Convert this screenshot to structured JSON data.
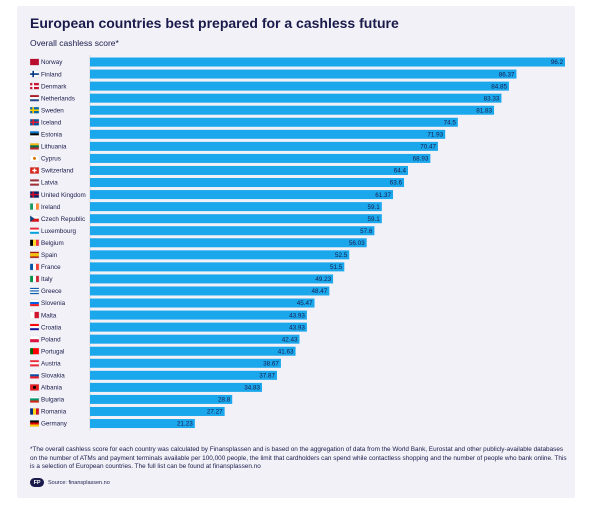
{
  "title": "European countries best prepared for a cashless future",
  "subtitle": "Overall cashless score*",
  "footnote": "*The overall cashless score for each country was calculated by Finansplassen and is based on the aggregation of data from the World Bank, Eurostat and other publicly-available databases on the number of ATMs and payment terminals available per 100,000 people, the limit that cardholders can spend while contactless shopping and the number of people who bank online. This is a selection of European countries. The full list can be found at finansplassen.no",
  "source": "Source: finansplassen.no",
  "logo_text": "FP",
  "colors": {
    "bar": "#1aa7ec",
    "text": "#1a1a4b",
    "card": "#f1f1f7",
    "grid": "#c9c9d6"
  },
  "chart_data": {
    "type": "bar",
    "orientation": "horizontal",
    "title": "European countries best prepared for a cashless future",
    "ylabel": "Overall cashless score*",
    "xlim": [
      0,
      96.2
    ],
    "categories": [
      "Norway",
      "Finland",
      "Denmark",
      "Netherlands",
      "Sweden",
      "Iceland",
      "Estonia",
      "Lithuania",
      "Cyprus",
      "Switzerland",
      "Latvia",
      "United Kingdom",
      "Ireland",
      "Czech Republic",
      "Luxembourg",
      "Belgium",
      "Spain",
      "France",
      "Italy",
      "Greece",
      "Slovenia",
      "Malta",
      "Croatia",
      "Poland",
      "Portugal",
      "Austria",
      "Slovakia",
      "Albania",
      "Bulgaria",
      "Romania",
      "Germany"
    ],
    "values": [
      96.2,
      86.37,
      84.85,
      83.33,
      81.83,
      74.5,
      71.93,
      70.47,
      68.93,
      64.4,
      63.6,
      61.37,
      59.1,
      59.1,
      57.6,
      56.03,
      52.5,
      51.5,
      49.23,
      48.47,
      45.47,
      43.93,
      43.93,
      42.43,
      41.63,
      38.67,
      37.87,
      34.83,
      28.8,
      27.27,
      21.23
    ],
    "labels": [
      "96.2",
      "86.37",
      "84.85",
      "83.33",
      "81.83",
      "74.5",
      "71.93",
      "70.47",
      "68.93",
      "64.4",
      "63.6",
      "61.37",
      "59.1",
      "59.1",
      "57.6",
      "56.03",
      "52.5",
      "51.5",
      "49.23",
      "48.47",
      "45.47",
      "43.93",
      "43.93",
      "42.43",
      "41.63",
      "38.67",
      "37.87",
      "34.83",
      "28.8",
      "27.27",
      "21.23"
    ],
    "flags": [
      {
        "icon": "norway-flag-icon",
        "stripes": [
          "#ba0c2f"
        ],
        "dir": "h"
      },
      {
        "icon": "finland-flag-icon",
        "stripes": [
          "#ffffff"
        ],
        "dir": "h",
        "cross": "#003580"
      },
      {
        "icon": "denmark-flag-icon",
        "stripes": [
          "#c8102e"
        ],
        "dir": "h",
        "cross": "#ffffff"
      },
      {
        "icon": "netherlands-flag-icon",
        "stripes": [
          "#ae1c28",
          "#ffffff",
          "#21468b"
        ],
        "dir": "h"
      },
      {
        "icon": "sweden-flag-icon",
        "stripes": [
          "#006aa7"
        ],
        "dir": "h",
        "cross": "#fecc00"
      },
      {
        "icon": "iceland-flag-icon",
        "stripes": [
          "#02529c"
        ],
        "dir": "h",
        "cross": "#dc1e35"
      },
      {
        "icon": "estonia-flag-icon",
        "stripes": [
          "#0072ce",
          "#000000",
          "#ffffff"
        ],
        "dir": "h"
      },
      {
        "icon": "lithuania-flag-icon",
        "stripes": [
          "#fdb913",
          "#006a44",
          "#c1272d"
        ],
        "dir": "h"
      },
      {
        "icon": "cyprus-flag-icon",
        "stripes": [
          "#ffffff"
        ],
        "dir": "h",
        "dot": "#d57800"
      },
      {
        "icon": "switzerland-flag-icon",
        "stripes": [
          "#da291c"
        ],
        "dir": "h",
        "plus": "#ffffff"
      },
      {
        "icon": "latvia-flag-icon",
        "stripes": [
          "#9e3039",
          "#ffffff",
          "#9e3039"
        ],
        "dir": "h"
      },
      {
        "icon": "united-kingdom-flag-icon",
        "stripes": [
          "#012169"
        ],
        "dir": "h",
        "cross": "#c8102e"
      },
      {
        "icon": "ireland-flag-icon",
        "stripes": [
          "#169b62",
          "#ffffff",
          "#ff883e"
        ],
        "dir": "v"
      },
      {
        "icon": "czech-republic-flag-icon",
        "stripes": [
          "#ffffff",
          "#d7141a"
        ],
        "dir": "h",
        "tri": "#11457e"
      },
      {
        "icon": "luxembourg-flag-icon",
        "stripes": [
          "#ed2939",
          "#ffffff",
          "#00a1de"
        ],
        "dir": "h"
      },
      {
        "icon": "belgium-flag-icon",
        "stripes": [
          "#000000",
          "#fdda24",
          "#ef3340"
        ],
        "dir": "v"
      },
      {
        "icon": "spain-flag-icon",
        "stripes": [
          "#aa151b",
          "#f1bf00",
          "#f1bf00",
          "#aa151b"
        ],
        "dir": "h"
      },
      {
        "icon": "france-flag-icon",
        "stripes": [
          "#0055a4",
          "#ffffff",
          "#ef4135"
        ],
        "dir": "v"
      },
      {
        "icon": "italy-flag-icon",
        "stripes": [
          "#009246",
          "#ffffff",
          "#ce2b37"
        ],
        "dir": "v"
      },
      {
        "icon": "greece-flag-icon",
        "stripes": [
          "#0d5eaf",
          "#ffffff",
          "#0d5eaf",
          "#ffffff",
          "#0d5eaf"
        ],
        "dir": "h"
      },
      {
        "icon": "slovenia-flag-icon",
        "stripes": [
          "#ffffff",
          "#005ce5",
          "#ed1c24"
        ],
        "dir": "h"
      },
      {
        "icon": "malta-flag-icon",
        "stripes": [
          "#ffffff",
          "#cf142b"
        ],
        "dir": "v"
      },
      {
        "icon": "croatia-flag-icon",
        "stripes": [
          "#ff0000",
          "#ffffff",
          "#171796"
        ],
        "dir": "h"
      },
      {
        "icon": "poland-flag-icon",
        "stripes": [
          "#ffffff",
          "#dc143c"
        ],
        "dir": "h"
      },
      {
        "icon": "portugal-flag-icon",
        "stripes": [
          "#006600",
          "#ff0000",
          "#ff0000"
        ],
        "dir": "v"
      },
      {
        "icon": "austria-flag-icon",
        "stripes": [
          "#ed2939",
          "#ffffff",
          "#ed2939"
        ],
        "dir": "h"
      },
      {
        "icon": "slovakia-flag-icon",
        "stripes": [
          "#ffffff",
          "#0b4ea2",
          "#ee1c25"
        ],
        "dir": "h"
      },
      {
        "icon": "albania-flag-icon",
        "stripes": [
          "#e41e20"
        ],
        "dir": "h",
        "dot": "#000000"
      },
      {
        "icon": "bulgaria-flag-icon",
        "stripes": [
          "#ffffff",
          "#00966e",
          "#d62612"
        ],
        "dir": "h"
      },
      {
        "icon": "romania-flag-icon",
        "stripes": [
          "#002b7f",
          "#fcd116",
          "#ce1126"
        ],
        "dir": "v"
      },
      {
        "icon": "germany-flag-icon",
        "stripes": [
          "#000000",
          "#dd0000",
          "#ffce00"
        ],
        "dir": "h"
      }
    ]
  }
}
